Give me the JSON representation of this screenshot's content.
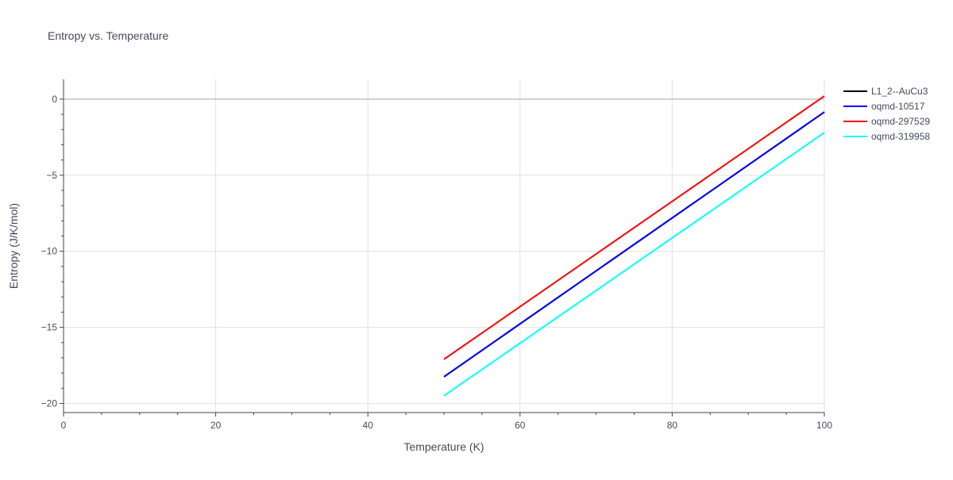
{
  "chart_data": {
    "type": "line",
    "title": "Entropy vs. Temperature",
    "xlabel": "Temperature (K)",
    "ylabel": "Entropy (J/K/mol)",
    "xlim": [
      0,
      100
    ],
    "ylim": [
      -20.6,
      1.3
    ],
    "x_ticks": [
      0,
      20,
      40,
      60,
      80,
      100
    ],
    "x_tick_labels": [
      "0",
      "20",
      "40",
      "60",
      "80",
      "100"
    ],
    "y_ticks": [
      0,
      -5,
      -10,
      -15,
      -20
    ],
    "y_tick_labels": [
      "0",
      "−5",
      "−10",
      "−15",
      "−20"
    ],
    "grid": true,
    "legend_position": "right",
    "series": [
      {
        "name": "L1_2--AuCu3",
        "color": "#000000",
        "x": [
          50,
          100
        ],
        "y": [
          -18.25,
          -0.85
        ]
      },
      {
        "name": "oqmd-10517",
        "color": "#0000ff",
        "x": [
          50,
          100
        ],
        "y": [
          -18.25,
          -0.85
        ]
      },
      {
        "name": "oqmd-297529",
        "color": "#ff0000",
        "x": [
          50,
          100
        ],
        "y": [
          -17.1,
          0.2
        ]
      },
      {
        "name": "oqmd-319958",
        "color": "#00ffff",
        "x": [
          50,
          100
        ],
        "y": [
          -19.5,
          -2.2
        ]
      }
    ]
  }
}
